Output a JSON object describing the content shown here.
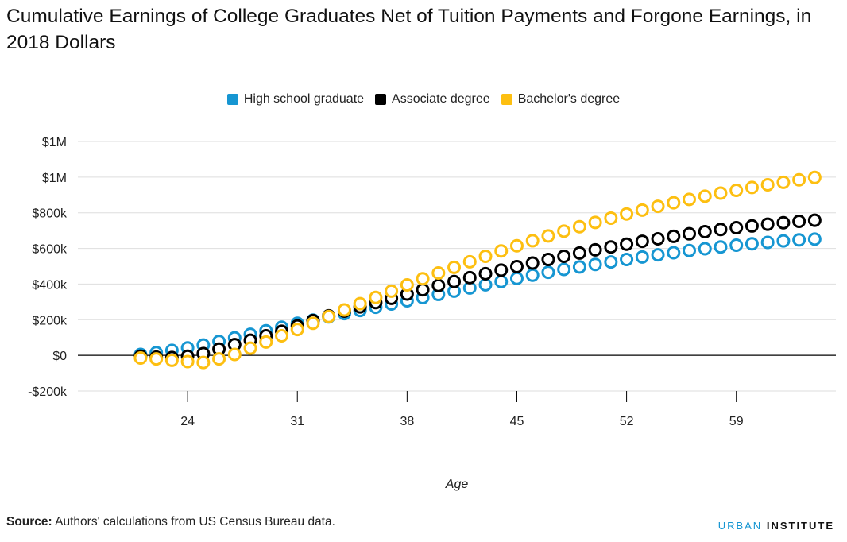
{
  "title": "Cumulative Earnings of College Graduates Net of Tuition Payments and Forgone Earnings, in 2018 Dollars",
  "source_label": "Source:",
  "source_text": " Authors' calculations from US Census Bureau data.",
  "brand": {
    "part1": "URBAN",
    "part2": "INSTITUTE"
  },
  "chart_data": {
    "type": "scatter",
    "xlabel": "Age",
    "ylabel": "",
    "x_ticks": [
      24,
      31,
      38,
      45,
      52,
      59
    ],
    "y_ticks": [
      -200000,
      0,
      200000,
      400000,
      600000,
      800000,
      1000000,
      1200000
    ],
    "y_tick_labels": [
      "-$200k",
      "$0",
      "$200k",
      "$400k",
      "$600k",
      "$800k",
      "$1M",
      "$1M"
    ],
    "xlim": [
      20,
      65
    ],
    "ylim": [
      -200000,
      1200000
    ],
    "grid": true,
    "legend_position": "top-center",
    "series": [
      {
        "name": "High school graduate",
        "color": "#1696d2",
        "x": [
          21,
          22,
          23,
          24,
          25,
          26,
          27,
          28,
          29,
          30,
          31,
          32,
          33,
          34,
          35,
          36,
          37,
          38,
          39,
          40,
          41,
          42,
          43,
          44,
          45,
          46,
          47,
          48,
          49,
          50,
          51,
          52,
          53,
          54,
          55,
          56,
          57,
          58,
          59,
          60,
          61,
          62,
          63,
          64
        ],
        "values": [
          5000,
          15000,
          28000,
          42000,
          58000,
          78000,
          98000,
          118000,
          138000,
          158000,
          180000,
          198000,
          216000,
          234000,
          252000,
          270000,
          288000,
          306000,
          324000,
          342000,
          360000,
          378000,
          396000,
          414000,
          432000,
          450000,
          466000,
          482000,
          496000,
          510000,
          524000,
          538000,
          552000,
          564000,
          576000,
          588000,
          598000,
          608000,
          618000,
          626000,
          634000,
          642000,
          648000,
          652000
        ]
      },
      {
        "name": "Associate degree",
        "color": "#000000",
        "x": [
          21,
          22,
          23,
          24,
          25,
          26,
          27,
          28,
          29,
          30,
          31,
          32,
          33,
          34,
          35,
          36,
          37,
          38,
          39,
          40,
          41,
          42,
          43,
          44,
          45,
          46,
          47,
          48,
          49,
          50,
          51,
          52,
          53,
          54,
          55,
          56,
          57,
          58,
          59,
          60,
          61,
          62,
          63,
          64
        ],
        "values": [
          -5000,
          -10000,
          -12000,
          -5000,
          10000,
          35000,
          60000,
          85000,
          110000,
          135000,
          165000,
          195000,
          222000,
          248000,
          272000,
          296000,
          320000,
          344000,
          368000,
          392000,
          414000,
          436000,
          458000,
          478000,
          498000,
          518000,
          538000,
          556000,
          574000,
          592000,
          608000,
          624000,
          640000,
          654000,
          668000,
          682000,
          694000,
          706000,
          716000,
          726000,
          736000,
          744000,
          752000,
          758000
        ]
      },
      {
        "name": "Bachelor's degree",
        "color": "#fdbf11",
        "x": [
          21,
          22,
          23,
          24,
          25,
          26,
          27,
          28,
          29,
          30,
          31,
          32,
          33,
          34,
          35,
          36,
          37,
          38,
          39,
          40,
          41,
          42,
          43,
          44,
          45,
          46,
          47,
          48,
          49,
          50,
          51,
          52,
          53,
          54,
          55,
          56,
          57,
          58,
          59,
          60,
          61,
          62,
          63,
          64
        ],
        "values": [
          -15000,
          -20000,
          -28000,
          -35000,
          -40000,
          -20000,
          5000,
          40000,
          75000,
          110000,
          145000,
          180000,
          218000,
          255000,
          290000,
          325000,
          360000,
          395000,
          430000,
          462000,
          494000,
          525000,
          556000,
          586000,
          615000,
          643000,
          670000,
          697000,
          722000,
          746000,
          770000,
          793000,
          815000,
          836000,
          856000,
          875000,
          893000,
          910000,
          926000,
          942000,
          957000,
          971000,
          985000,
          998000
        ]
      }
    ]
  }
}
